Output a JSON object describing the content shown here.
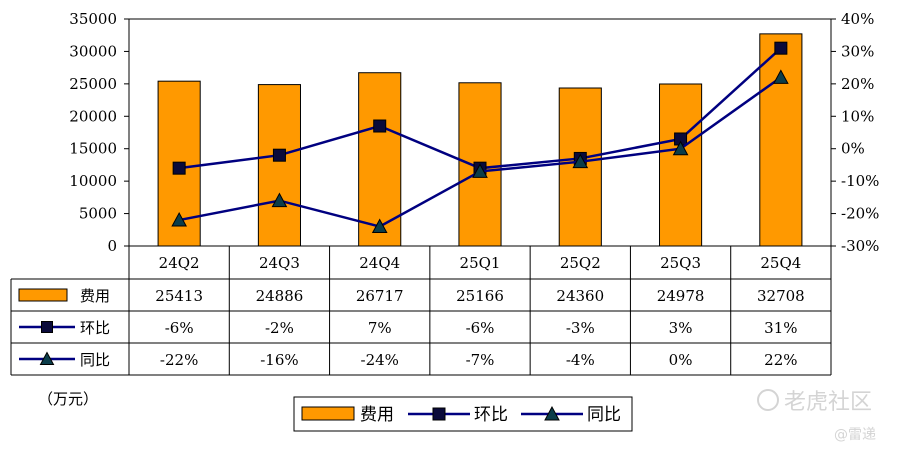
{
  "chart_data": {
    "type": "bar",
    "categories": [
      "24Q2",
      "24Q3",
      "24Q4",
      "25Q1",
      "25Q2",
      "25Q3",
      "25Q4"
    ],
    "series": [
      {
        "name": "费用",
        "kind": "bar",
        "axis": "left",
        "color": "#FF9900",
        "values": [
          25413,
          24886,
          26717,
          25166,
          24360,
          24978,
          32708
        ],
        "labels": [
          "25413",
          "24886",
          "26717",
          "25166",
          "24360",
          "24978",
          "32708"
        ]
      },
      {
        "name": "环比",
        "kind": "line",
        "axis": "right",
        "marker": "square",
        "color": "#000080",
        "values": [
          -6,
          -2,
          7,
          -6,
          -3,
          3,
          31
        ],
        "labels": [
          "-6%",
          "-2%",
          "7%",
          "-6%",
          "-3%",
          "3%",
          "31%"
        ]
      },
      {
        "name": "同比",
        "kind": "line",
        "axis": "right",
        "marker": "triangle",
        "color": "#000080",
        "values": [
          -22,
          -16,
          -24,
          -7,
          -4,
          0,
          22
        ],
        "labels": [
          "-22%",
          "-16%",
          "-24%",
          "-7%",
          "-4%",
          "0%",
          "22%"
        ]
      }
    ],
    "y_left": {
      "min": 0,
      "max": 35000,
      "ticks": [
        0,
        5000,
        10000,
        15000,
        20000,
        25000,
        30000,
        35000
      ]
    },
    "y_right": {
      "min": -30,
      "max": 40,
      "ticks": [
        "-30%",
        "-20%",
        "-10%",
        "0%",
        "10%",
        "20%",
        "30%",
        "40%"
      ]
    },
    "unit": "（万元）",
    "legend_placement": "bottom",
    "grid": false,
    "data_table": true
  },
  "watermark": {
    "brand": "老虎社区",
    "author": "@雷递"
  }
}
